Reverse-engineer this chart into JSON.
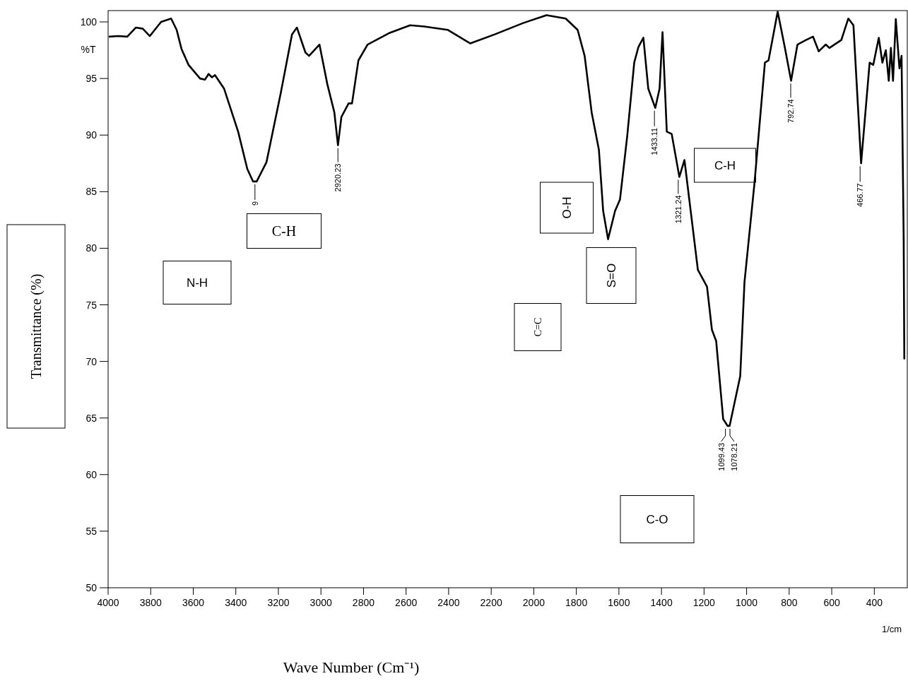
{
  "chart_data": {
    "type": "line",
    "xlabel": "Wave Number (Cm⁻¹)",
    "ylabel": "Transmittance (%)",
    "xlim": [
      4000,
      245
    ],
    "ylim": [
      50,
      101
    ],
    "xticks": [
      4000,
      3800,
      3600,
      3400,
      3200,
      3000,
      2800,
      2600,
      2400,
      2200,
      2000,
      1800,
      1600,
      1400,
      1200,
      1000,
      800,
      600,
      400
    ],
    "yticks": [
      50,
      55,
      60,
      65,
      70,
      75,
      80,
      85,
      90,
      95,
      100
    ],
    "line_style": "solid",
    "x": [
      3993,
      3953,
      3910,
      3870,
      3837,
      3804,
      3751,
      3704,
      3678,
      3655,
      3622,
      3568,
      3545,
      3528,
      3512,
      3498,
      3455,
      3389,
      3346,
      3319,
      3302,
      3256,
      3189,
      3136,
      3113,
      3073,
      3056,
      3007,
      2970,
      2937,
      2920,
      2904,
      2870,
      2854,
      2824,
      2781,
      2681,
      2581,
      2515,
      2405,
      2299,
      2183,
      2050,
      1940,
      1850,
      1794,
      1761,
      1728,
      1694,
      1674,
      1651,
      1618,
      1595,
      1561,
      1528,
      1508,
      1485,
      1462,
      1429,
      1409,
      1395,
      1375,
      1352,
      1316,
      1292,
      1229,
      1186,
      1163,
      1143,
      1110,
      1089,
      1080,
      1030,
      1010,
      963,
      914,
      897,
      854,
      821,
      791,
      761,
      721,
      688,
      661,
      628,
      611,
      555,
      522,
      498,
      462,
      422,
      405,
      379,
      362,
      346,
      332,
      322,
      312,
      299,
      282,
      272,
      262,
      259
    ],
    "series": [
      {
        "color": "#000000",
        "values": [
          98.7,
          98.75,
          98.7,
          99.5,
          99.4,
          98.75,
          100,
          100.3,
          99.3,
          97.6,
          96.2,
          95,
          94.9,
          95.4,
          95.1,
          95.3,
          94.1,
          90.3,
          87,
          85.9,
          85.9,
          87.6,
          93.7,
          98.9,
          99.5,
          97.3,
          97,
          98,
          94.5,
          92,
          89.1,
          91.6,
          92.8,
          92.8,
          96.6,
          98,
          99,
          99.7,
          99.6,
          99.3,
          98.1,
          98.9,
          99.9,
          100.6,
          100.3,
          99.3,
          97,
          92,
          88.7,
          83.3,
          80.8,
          83.3,
          84.3,
          89.9,
          96.4,
          97.8,
          98.6,
          94.1,
          92.4,
          94.1,
          99.1,
          90.3,
          90.1,
          86.3,
          87.8,
          78.1,
          76.6,
          72.8,
          71.8,
          64.9,
          64.3,
          64.3,
          68.7,
          77,
          85.75,
          96.4,
          96.6,
          100.9,
          97.8,
          94.8,
          98,
          98.4,
          98.7,
          97.4,
          98,
          97.7,
          98.4,
          100.3,
          99.7,
          87.5,
          96.4,
          96.2,
          98.6,
          96.4,
          97.5,
          94.8,
          97.7,
          94.8,
          100.25,
          95.9,
          97,
          80.9,
          70.25
        ]
      }
    ],
    "annotations": [
      "%T",
      "1/cm",
      {
        "text": "9",
        "x": 3310,
        "y": 85.9
      },
      {
        "text": "2920.23",
        "x": 2920.23,
        "y": 89.1
      },
      {
        "text": "1433.11",
        "x": 1433.11,
        "y": 92.4
      },
      {
        "text": "1321.24",
        "x": 1321.24,
        "y": 86.3
      },
      {
        "text": "1099.43",
        "x": 1099.43,
        "y": 64.3
      },
      {
        "text": "1078.21",
        "x": 1078.21,
        "y": 64.3
      },
      {
        "text": "792.74",
        "x": 792.74,
        "y": 94.8
      },
      {
        "text": "466.77",
        "x": 466.77,
        "y": 87.5
      },
      "C-H",
      "N-H",
      "O-H",
      "S=O",
      "C=C",
      "C-H",
      "C-O"
    ]
  }
}
